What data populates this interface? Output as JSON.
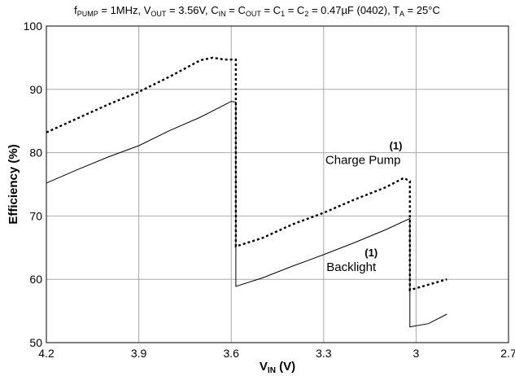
{
  "chart_data": {
    "type": "line",
    "title": {
      "segments": [
        {
          "t": "f"
        },
        {
          "t": "PUMP",
          "sub": true
        },
        {
          "t": " = 1MHz, V"
        },
        {
          "t": "OUT",
          "sub": true
        },
        {
          "t": " = 3.56V, C"
        },
        {
          "t": "IN",
          "sub": true
        },
        {
          "t": " = C"
        },
        {
          "t": "OUT",
          "sub": true
        },
        {
          "t": " = C"
        },
        {
          "t": "1",
          "sub": true
        },
        {
          "t": " = C"
        },
        {
          "t": "2",
          "sub": true
        },
        {
          "t": " = 0.47µF (0402), T"
        },
        {
          "t": "A",
          "sub": true
        },
        {
          "t": " = 25°C"
        }
      ]
    },
    "xlabel": {
      "main": "V",
      "sub": "IN",
      "suffix": " (V)"
    },
    "ylabel": "Efficiency (%)",
    "xlim": [
      4.2,
      2.7
    ],
    "ylim": [
      50,
      100
    ],
    "x_ticks": [
      "4.2",
      "3.9",
      "3.6",
      "3.3",
      "3",
      "2.7"
    ],
    "y_ticks": [
      "50",
      "60",
      "70",
      "80",
      "90",
      "100"
    ],
    "grid": true,
    "series": [
      {
        "name": "Charge Pump",
        "style": "dotted",
        "points": [
          [
            4.2,
            83.2
          ],
          [
            4.0,
            87.6
          ],
          [
            3.9,
            89.6
          ],
          [
            3.8,
            92.0
          ],
          [
            3.7,
            94.6
          ],
          [
            3.66,
            95.0
          ],
          [
            3.62,
            94.7
          ],
          [
            3.585,
            94.7
          ],
          [
            3.585,
            65.2
          ],
          [
            3.5,
            66.5
          ],
          [
            3.4,
            68.7
          ],
          [
            3.3,
            70.5
          ],
          [
            3.2,
            72.6
          ],
          [
            3.1,
            74.5
          ],
          [
            3.04,
            76.0
          ],
          [
            3.02,
            75.5
          ],
          [
            3.02,
            58.3
          ],
          [
            2.9,
            60.0
          ]
        ]
      },
      {
        "name": "Backlight",
        "style": "solid",
        "points": [
          [
            4.2,
            75.2
          ],
          [
            4.1,
            77.3
          ],
          [
            4.0,
            79.3
          ],
          [
            3.9,
            81.1
          ],
          [
            3.8,
            83.5
          ],
          [
            3.7,
            85.6
          ],
          [
            3.6,
            88.1
          ],
          [
            3.585,
            88.0
          ],
          [
            3.585,
            58.9
          ],
          [
            3.5,
            60.2
          ],
          [
            3.4,
            62.1
          ],
          [
            3.3,
            63.9
          ],
          [
            3.2,
            65.8
          ],
          [
            3.1,
            67.8
          ],
          [
            3.02,
            69.6
          ],
          [
            3.02,
            52.5
          ],
          [
            2.96,
            53.0
          ],
          [
            2.9,
            54.5
          ]
        ]
      }
    ],
    "annotations": [
      {
        "text": "Charge Pump",
        "sup": "(1)",
        "x": 3.05,
        "y": 78.2
      },
      {
        "text": "Backlight",
        "sup": "(1)",
        "x": 3.13,
        "y": 61.3
      }
    ]
  }
}
